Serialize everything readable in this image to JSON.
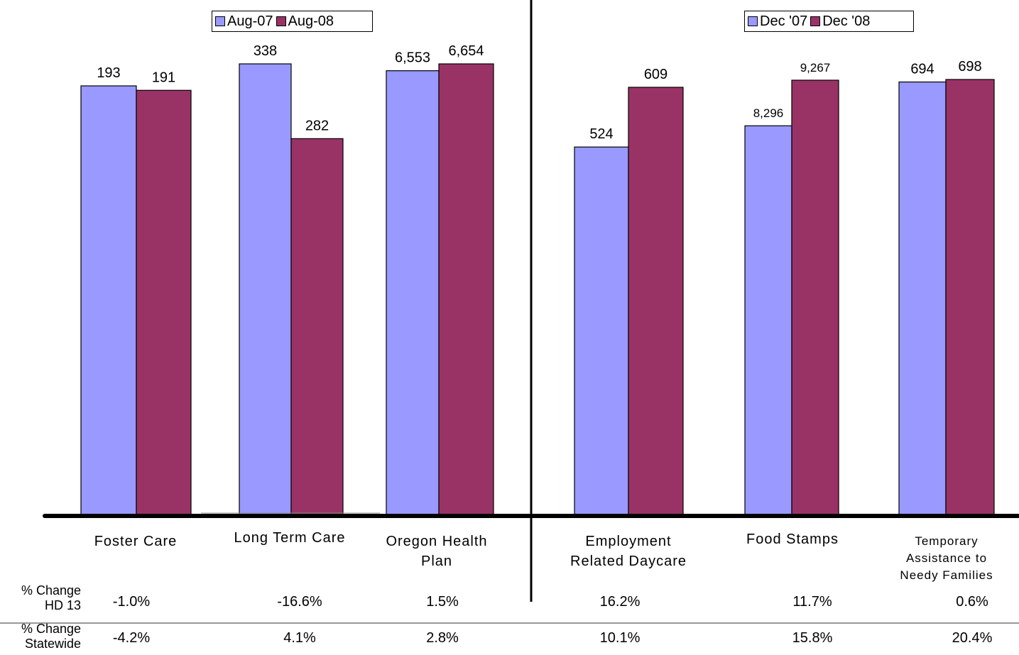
{
  "chart_data": [
    {
      "type": "bar",
      "categories": [
        "Foster Care",
        "Long Term Care",
        "Oregon Health Plan"
      ],
      "series": [
        {
          "name": "Aug-07",
          "values": [
            193,
            338,
            6553
          ],
          "labels": [
            "193",
            "338",
            "6,553"
          ]
        },
        {
          "name": "Aug-08",
          "values": [
            191,
            282,
            6654
          ],
          "labels": [
            "191",
            "282",
            "6,654"
          ]
        }
      ],
      "colors": [
        "#9999ff",
        "#993366"
      ],
      "note": "Bars in each category are scaled independently"
    },
    {
      "type": "bar",
      "categories": [
        "Employment Related Daycare",
        "Food Stamps",
        "Temporary Assistance to Needy Families"
      ],
      "series": [
        {
          "name": "Dec '07",
          "values": [
            524,
            8296,
            694
          ],
          "labels": [
            "524",
            "8,296",
            "694"
          ]
        },
        {
          "name": "Dec '08",
          "values": [
            609,
            9267,
            698
          ],
          "labels": [
            "609",
            "9,267",
            "698"
          ]
        }
      ],
      "colors": [
        "#9999ff",
        "#993366"
      ],
      "note": "Bars in each category are scaled independently"
    }
  ],
  "legends": {
    "left": [
      "Aug-07",
      "Aug-08"
    ],
    "right": [
      "Dec '07",
      "Dec '08"
    ]
  },
  "table": {
    "rows": [
      {
        "label_lines": [
          "% Change",
          "HD 13"
        ],
        "values": [
          "-1.0%",
          "-16.6%",
          "1.5%",
          "16.2%",
          "11.7%",
          "0.6%"
        ]
      },
      {
        "label_lines": [
          "% Change",
          "Statewide"
        ],
        "values": [
          "-4.2%",
          "4.1%",
          "2.8%",
          "10.1%",
          "15.8%",
          "20.4%"
        ]
      }
    ]
  }
}
